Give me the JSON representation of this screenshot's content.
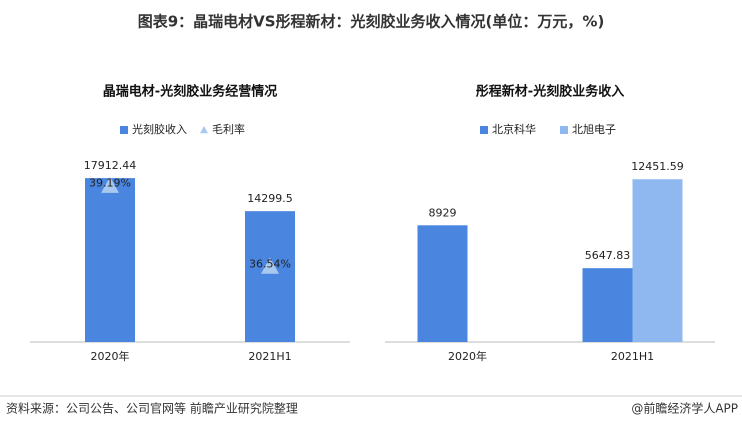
{
  "title": "图表9：晶瑞电材VS彤程新材：光刻胶业务收入情况(单位：万元，%)",
  "source": "资料来源：公司公告、公司官网等 前瞻产业研究院整理",
  "credit": "@前瞻经济学人APP",
  "chart_data": [
    {
      "type": "bar",
      "title": "晶瑞电材-光刻胶业务经营情况",
      "categories": [
        "2020年",
        "2021H1"
      ],
      "series": [
        {
          "name": "光刻胶收入",
          "color": "#4a86e0",
          "values": [
            17912.44,
            14299.5
          ]
        },
        {
          "name": "毛利率",
          "type": "scatter",
          "marker": "triangle",
          "axis": "y2",
          "color": "#a9c8ef",
          "values": [
            39.19,
            36.54
          ],
          "value_labels": [
            "39.19%",
            "36.54%"
          ]
        }
      ],
      "ylim": [
        0,
        20000
      ],
      "y2lim": [
        34,
        40
      ],
      "legend": "top"
    },
    {
      "type": "bar",
      "title": "彤程新材-光刻胶业务收入",
      "categories": [
        "2020年",
        "2021H1"
      ],
      "series": [
        {
          "name": "北京科华",
          "color": "#4a86e0",
          "values": [
            8929,
            5647.83
          ]
        },
        {
          "name": "北旭电子",
          "color": "#8fb8f0",
          "values": [
            null,
            12451.59
          ]
        }
      ],
      "ylim": [
        0,
        14000
      ],
      "legend": "top"
    }
  ]
}
